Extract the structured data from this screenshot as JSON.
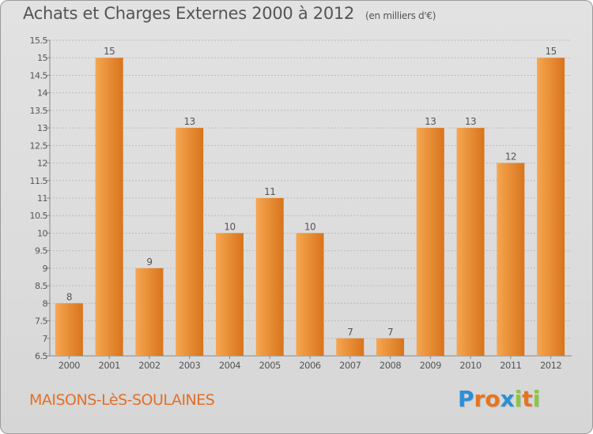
{
  "title": "Achats et Charges Externes 2000 à 2012",
  "unit": "(en milliers d'€)",
  "location": "MAISONS-LèS-SOULAINES",
  "logo": {
    "text": "Proxiti",
    "letters": [
      {
        "char": "P",
        "color": "#2a8fd6"
      },
      {
        "char": "r",
        "color": "#e8731e"
      },
      {
        "char": "o",
        "color": "#e8731e"
      },
      {
        "char": "x",
        "color": "#2a8fd6"
      },
      {
        "char": "i",
        "color": "#8cc63f"
      },
      {
        "char": "t",
        "color": "#e8731e"
      },
      {
        "char": "i",
        "color": "#8cc63f"
      }
    ]
  },
  "colors": {
    "bar_light": "#f6a650",
    "bar_dark": "#d8741c",
    "axis_text": "#555555",
    "grid": "#bdbdbd"
  },
  "chart_data": {
    "type": "bar",
    "categories": [
      "2000",
      "2001",
      "2002",
      "2003",
      "2004",
      "2005",
      "2006",
      "2007",
      "2008",
      "2009",
      "2010",
      "2011",
      "2012"
    ],
    "values": [
      8,
      15,
      9,
      13,
      10,
      11,
      10,
      7,
      7,
      13,
      13,
      12,
      15
    ],
    "data_labels": [
      "8",
      "15",
      "9",
      "13",
      "10",
      "11",
      "10",
      "7",
      "7",
      "13",
      "13",
      "12",
      "15"
    ],
    "ylim": [
      6.5,
      15.5
    ],
    "yticks": [
      6.5,
      7,
      7.5,
      8,
      8.5,
      9,
      9.5,
      10,
      10.5,
      11,
      11.5,
      12,
      12.5,
      13,
      13.5,
      14,
      14.5,
      15,
      15.5
    ],
    "ytick_labels": [
      "6.5",
      "7",
      "7.5",
      "8",
      "8.5",
      "9",
      "9.5",
      "10",
      "10.5",
      "11",
      "11.5",
      "12",
      "12.5",
      "13",
      "13.5",
      "14",
      "14.5",
      "15",
      "15.5"
    ],
    "grid": true,
    "xlabel": "",
    "ylabel": ""
  }
}
